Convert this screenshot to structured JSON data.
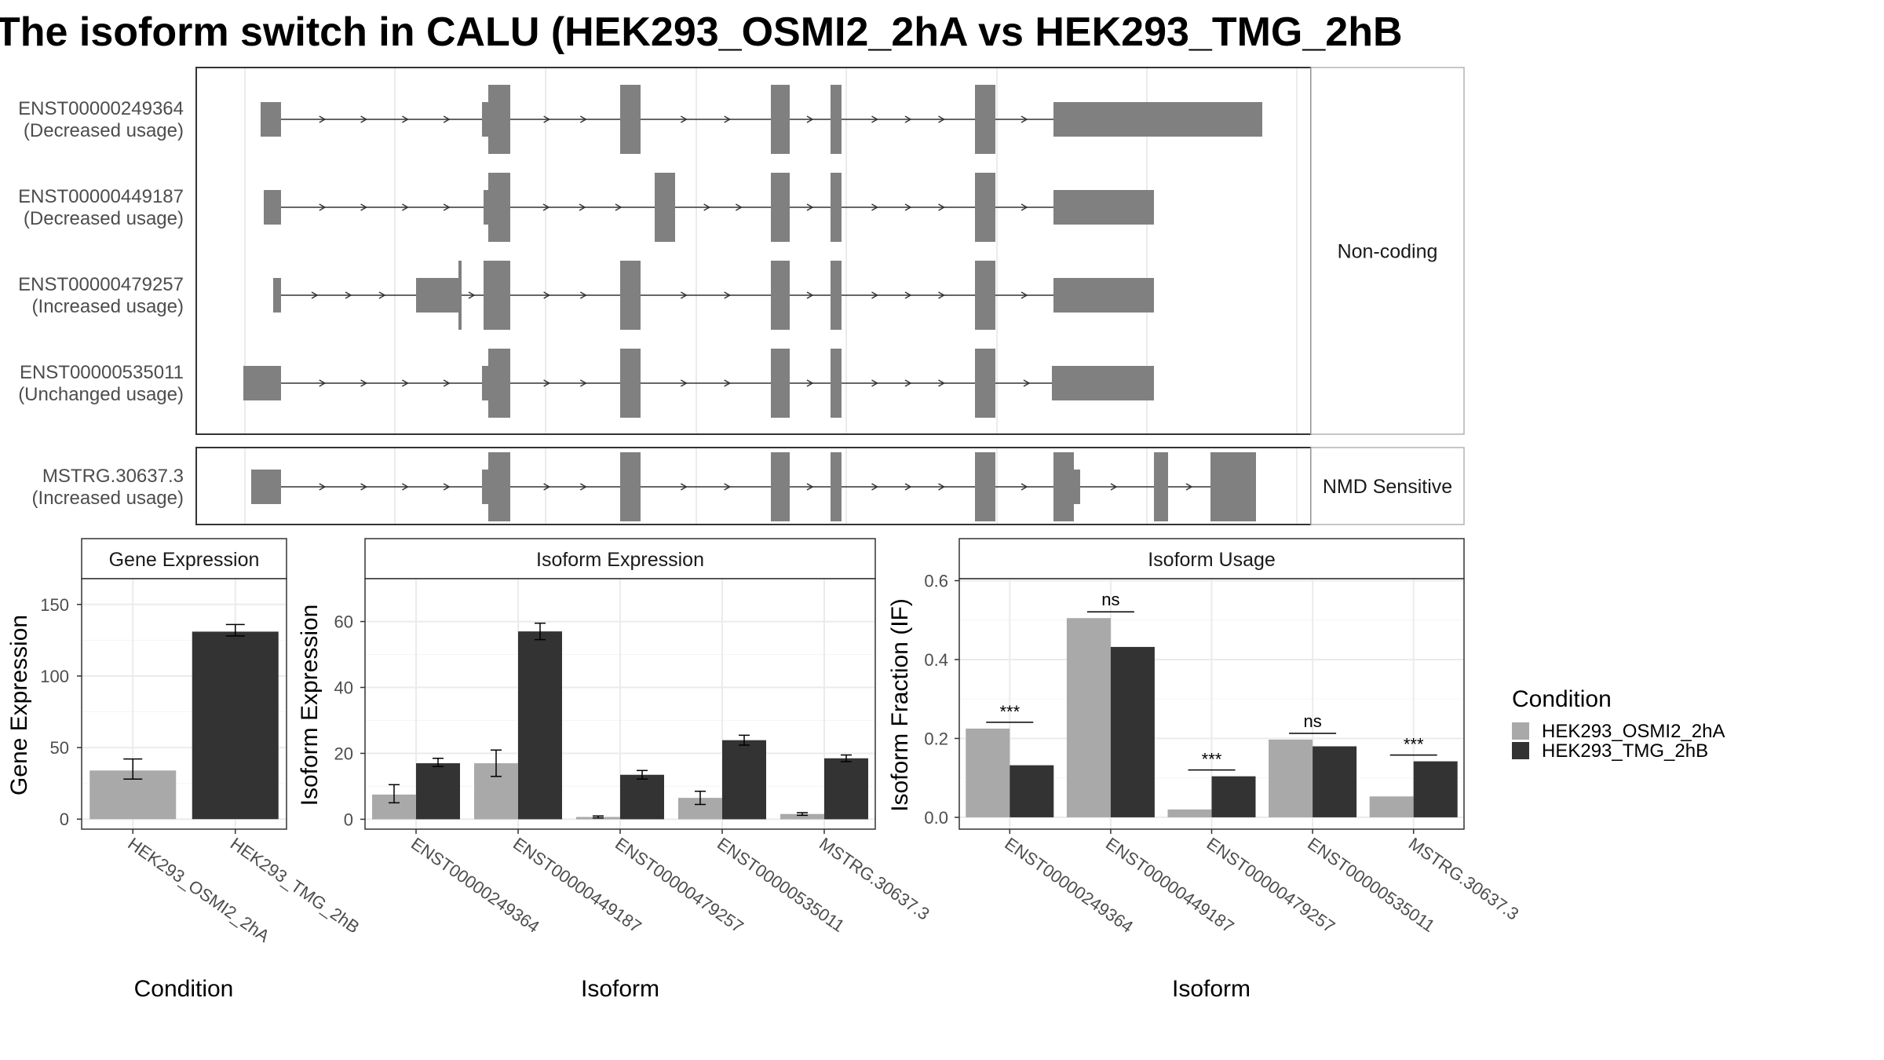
{
  "title": "The isoform switch in CALU (HEK293_OSMI2_2hA vs HEK293_TMG_2hB",
  "colors": {
    "exon": "#808080",
    "cond1": "#a9a9a9",
    "cond2": "#333333",
    "grid": "#ebebeb",
    "panel_border": "#333333",
    "strip_border": "#b3b3b3"
  },
  "structure": {
    "groups": [
      {
        "label": "Non-coding",
        "transcripts": [
          {
            "id": "ENST00000249364",
            "usage": "(Decreased usage)",
            "exons": [
              [
                332,
                358
              ],
              [
                622,
                650
              ],
              [
                790,
                816
              ],
              [
                982,
                1006
              ],
              [
                1058,
                1072
              ],
              [
                1242,
                1268
              ],
              [
                1342,
                1608
              ]
            ],
            "thick_exons": [],
            "nubs": [
              [
                614,
                622
              ]
            ],
            "intron": [
              358,
              1342
            ]
          },
          {
            "id": "ENST00000449187",
            "usage": "(Decreased usage)",
            "exons": [
              [
                336,
                358
              ],
              [
                622,
                650
              ],
              [
                834,
                860
              ],
              [
                982,
                1006
              ],
              [
                1058,
                1072
              ],
              [
                1242,
                1268
              ],
              [
                1342,
                1470
              ]
            ],
            "thick_exons": [],
            "nubs": [
              [
                616,
                622
              ]
            ],
            "intron": [
              358,
              1342
            ]
          },
          {
            "id": "ENST00000479257",
            "usage": "(Increased usage)",
            "exons": [
              [
                348,
                358
              ],
              [
                530,
                586
              ],
              [
                616,
                650
              ],
              [
                790,
                816
              ],
              [
                982,
                1006
              ],
              [
                1058,
                1072
              ],
              [
                1242,
                1268
              ],
              [
                1342,
                1470
              ]
            ],
            "thick_exons": [
              [
                584,
                588
              ]
            ],
            "nubs": [],
            "intron": [
              358,
              1342
            ]
          },
          {
            "id": "ENST00000535011",
            "usage": "(Unchanged usage)",
            "exons": [
              [
                310,
                358
              ],
              [
                622,
                650
              ],
              [
                790,
                816
              ],
              [
                982,
                1006
              ],
              [
                1058,
                1072
              ],
              [
                1242,
                1268
              ],
              [
                1348,
                1470
              ]
            ],
            "thick_exons": [],
            "nubs": [
              [
                614,
                622
              ],
              [
                1340,
                1348
              ]
            ],
            "intron": [
              358,
              1340
            ]
          }
        ]
      },
      {
        "label": "NMD Sensitive",
        "transcripts": [
          {
            "id": "MSTRG.30637.3",
            "usage": "(Increased usage)",
            "exons": [
              [
                320,
                358
              ],
              [
                622,
                650
              ],
              [
                790,
                816
              ],
              [
                982,
                1006
              ],
              [
                1058,
                1072
              ],
              [
                1242,
                1268
              ],
              [
                1342,
                1368
              ],
              [
                1470,
                1488
              ],
              [
                1542,
                1600
              ]
            ],
            "thick_exons": [],
            "nubs": [
              [
                614,
                622
              ],
              [
                1368,
                1376
              ]
            ],
            "intron": [
              358,
              1600
            ]
          }
        ]
      }
    ]
  },
  "chart_data": [
    {
      "type": "bar",
      "title": "Gene Expression",
      "xlabel": "Condition",
      "ylabel": "Gene Expression",
      "ylim": [
        -7,
        168
      ],
      "yticks": [
        0,
        50,
        100,
        150
      ],
      "categories": [
        "HEK293_OSMI2_2hA",
        "HEK293_TMG_2hB"
      ],
      "values": [
        34,
        131
      ],
      "errors": [
        [
          28,
          42
        ],
        [
          128,
          136
        ]
      ],
      "bar_colors": [
        "#a9a9a9",
        "#333333"
      ]
    },
    {
      "type": "bar",
      "title": "Isoform Expression",
      "xlabel": "Isoform",
      "ylabel": "Isoform Expression",
      "ylim": [
        -3,
        73
      ],
      "yticks": [
        0,
        20,
        40,
        60
      ],
      "categories": [
        "ENST00000249364",
        "ENST00000449187",
        "ENST00000479257",
        "ENST00000535011",
        "MSTRG.30637.3"
      ],
      "series": [
        {
          "name": "HEK293_OSMI2_2hA",
          "values": [
            7.5,
            17,
            0.7,
            6.5,
            1.6
          ],
          "errors": [
            [
              5,
              10.5
            ],
            [
              13,
              21
            ],
            [
              0.4,
              1.0
            ],
            [
              4.5,
              8.5
            ],
            [
              1.2,
              2.0
            ]
          ]
        },
        {
          "name": "HEK293_TMG_2hB",
          "values": [
            17,
            57,
            13.5,
            24,
            18.5
          ],
          "errors": [
            [
              16,
              18.5
            ],
            [
              54.5,
              59.5
            ],
            [
              12.2,
              14.8
            ],
            [
              22.5,
              25.5
            ],
            [
              17.5,
              19.5
            ]
          ]
        }
      ]
    },
    {
      "type": "bar",
      "title": "Isoform Usage",
      "xlabel": "Isoform",
      "ylabel": "Isoform Fraction (IF)",
      "ylim": [
        -0.03,
        0.605
      ],
      "yticks": [
        0.0,
        0.2,
        0.4,
        0.6
      ],
      "ytick_labels": [
        "0.0",
        "0.2",
        "0.4",
        "0.6"
      ],
      "categories": [
        "ENST00000249364",
        "ENST00000449187",
        "ENST00000479257",
        "ENST00000535011",
        "MSTRG.30637.3"
      ],
      "series": [
        {
          "name": "HEK293_OSMI2_2hA",
          "values": [
            0.225,
            0.505,
            0.02,
            0.197,
            0.053
          ]
        },
        {
          "name": "HEK293_TMG_2hB",
          "values": [
            0.132,
            0.432,
            0.104,
            0.18,
            0.142
          ]
        }
      ],
      "significance": [
        "***",
        "ns",
        "***",
        "ns",
        "***"
      ]
    }
  ],
  "legend": {
    "title": "Condition",
    "items": [
      {
        "label": "HEK293_OSMI2_2hA",
        "color": "#a9a9a9"
      },
      {
        "label": "HEK293_TMG_2hB",
        "color": "#333333"
      }
    ]
  }
}
